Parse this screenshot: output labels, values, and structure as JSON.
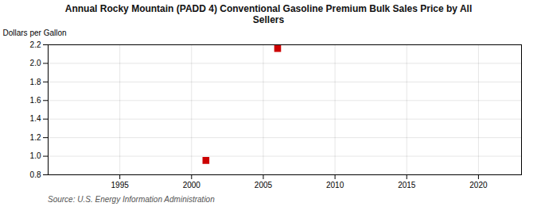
{
  "chart_data": {
    "type": "scatter",
    "title": "Annual Rocky Mountain (PADD 4) Conventional Gasoline Premium Bulk Sales Price by All\nSellers",
    "ylabel": "Dollars per Gallon",
    "annotations": [
      "Source: U.S. Energy Information Administration"
    ],
    "x": [
      2001,
      2006
    ],
    "values": [
      0.955,
      2.16
    ],
    "color": "#cc0000",
    "marker": "square",
    "xlim": [
      1990,
      2023
    ],
    "xticks": [
      1995,
      2000,
      2005,
      2010,
      2015,
      2020
    ],
    "ylim": [
      0.8,
      2.2
    ],
    "yticks": [
      0.8,
      {
        "value": 1.0,
        "label": "1.0"
      },
      1.2,
      1.4,
      1.6,
      1.8,
      {
        "value": 2.0,
        "label": "2.0"
      },
      2.2
    ],
    "grid": true
  }
}
